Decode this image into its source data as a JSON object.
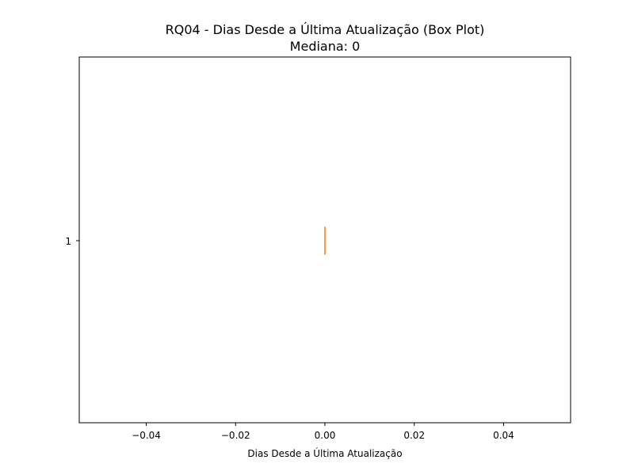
{
  "chart_data": {
    "type": "boxplot",
    "title": "RQ04 - Dias Desde a Última Atualização (Box Plot)",
    "subtitle": "Mediana: 0",
    "xlabel": "Dias Desde a Última Atualização",
    "ylabel": "",
    "orientation": "horizontal",
    "xlim": [
      -0.055,
      0.055
    ],
    "x_ticks": [
      -0.04,
      -0.02,
      0.0,
      0.02,
      0.04
    ],
    "x_tick_labels": [
      "−0.04",
      "−0.02",
      "0.00",
      "0.02",
      "0.04"
    ],
    "y_ticks": [
      1
    ],
    "y_tick_labels": [
      "1"
    ],
    "grid": false,
    "series": [
      {
        "category": "1",
        "min": 0,
        "q1": 0,
        "median": 0,
        "q3": 0,
        "max": 0
      }
    ],
    "colors": {
      "box": "#000000",
      "median": "#ff7f0e",
      "axes": "#000000"
    }
  }
}
